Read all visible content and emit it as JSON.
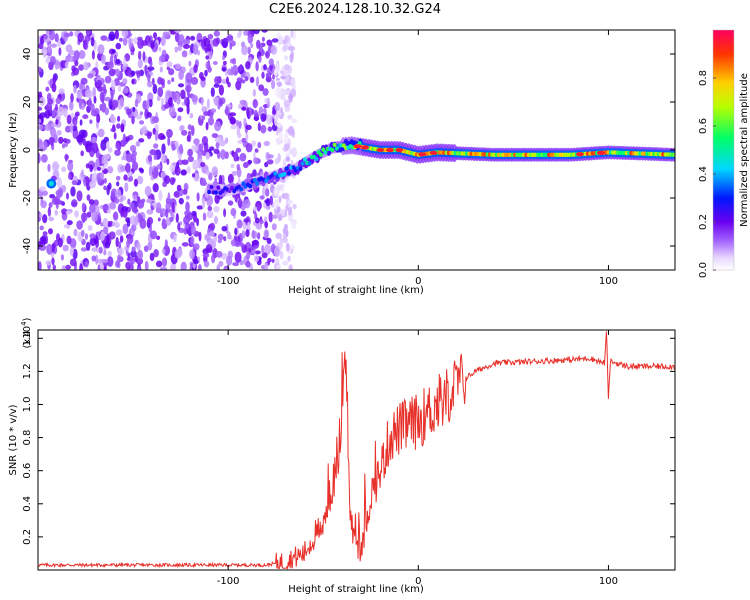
{
  "title": "C2E6.2024.128.10.32.G24",
  "spectrogram": {
    "type": "heatmap",
    "xlabel": "Height of straight line (km)",
    "ylabel": "Frequency (Hz)",
    "xlim": [
      -200,
      135
    ],
    "ylim": [
      -50,
      50
    ],
    "xticks": [
      -100,
      0,
      100
    ],
    "yticks": [
      -40,
      -20,
      0,
      20,
      40
    ],
    "colorbar": {
      "label": "Normalized spectral amplitude",
      "range": [
        0,
        1
      ],
      "ticks": [
        "0.0",
        "0.2",
        "0.4",
        "0.6",
        "0.8"
      ],
      "tick_values": [
        0,
        0.2,
        0.4,
        0.6,
        0.8
      ]
    },
    "noise_region_x": [
      -200,
      -65
    ],
    "signal_path": {
      "x": [
        -200,
        -120,
        -100,
        -80,
        -65,
        -55,
        -45,
        -35,
        -20,
        -10,
        0,
        10,
        40,
        80,
        100,
        135
      ],
      "y": [
        -14,
        -15,
        -17,
        -12,
        -8,
        -3,
        1,
        2,
        0,
        0,
        -2,
        -1,
        -2,
        -2,
        -1,
        -2
      ]
    }
  },
  "snr": {
    "type": "line",
    "xlabel": "Height of straight line (km)",
    "ylabel": "SNR (10 * v/v)",
    "yscale_label": "(x10",
    "yscale_exp": "4",
    "yscale_close": ")",
    "xlim": [
      -200,
      135
    ],
    "ylim": [
      0,
      1.45
    ],
    "xticks": [
      -100,
      0,
      100
    ],
    "yticks": [
      "0.2",
      "0.4",
      "0.6",
      "0.8",
      "1.0",
      "1.2",
      "1.4"
    ],
    "ytick_values": [
      0.2,
      0.4,
      0.6,
      0.8,
      1.0,
      1.2,
      1.4
    ],
    "series": [
      {
        "color": "#e8302a",
        "x": [
          -200,
          -160,
          -120,
          -80,
          -70,
          -60,
          -50,
          -45,
          -40,
          -38,
          -36,
          -34,
          -30,
          -25,
          -20,
          -15,
          -10,
          -5,
          0,
          5,
          10,
          15,
          20,
          30,
          40,
          60,
          80,
          90,
          98,
          99,
          100,
          101,
          110,
          120,
          135
        ],
        "y": [
          0.03,
          0.03,
          0.03,
          0.03,
          0.05,
          0.1,
          0.3,
          0.5,
          0.9,
          1.3,
          0.35,
          0.2,
          0.1,
          0.45,
          0.6,
          0.8,
          0.85,
          0.88,
          0.9,
          0.95,
          1.0,
          1.05,
          1.12,
          1.2,
          1.25,
          1.26,
          1.27,
          1.28,
          1.25,
          1.45,
          1.02,
          1.26,
          1.23,
          1.23,
          1.23
        ]
      }
    ]
  }
}
